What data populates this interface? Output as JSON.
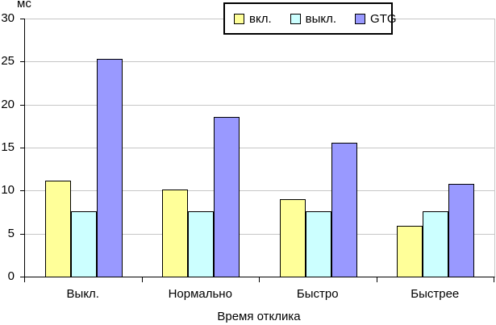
{
  "chart_data": {
    "type": "bar",
    "title": "",
    "unit_label": "мс",
    "xlabel": "Время отклика",
    "ylabel": "мс",
    "categories": [
      "Выкл.",
      "Нормально",
      "Быстро",
      "Быстрее"
    ],
    "series": [
      {
        "name": "вкл.",
        "color": "#ffff99",
        "values": [
          11.2,
          10.1,
          9.0,
          5.9
        ]
      },
      {
        "name": "выкл.",
        "color": "#ccffff",
        "values": [
          7.6,
          7.6,
          7.6,
          7.6
        ]
      },
      {
        "name": "GTG",
        "color": "#9999ff",
        "values": [
          25.3,
          18.6,
          15.6,
          10.8
        ]
      }
    ],
    "ylim": [
      0,
      30
    ],
    "yticks": [
      0,
      5,
      10,
      15,
      20,
      25,
      30
    ],
    "grid": true,
    "legend_position": "top-center",
    "colors": {
      "background": "#ffffff",
      "gridline": "#c6c6c6",
      "axis": "#000000",
      "bar_border": "#000000",
      "legend_border": "#000000",
      "text": "#000000"
    }
  }
}
